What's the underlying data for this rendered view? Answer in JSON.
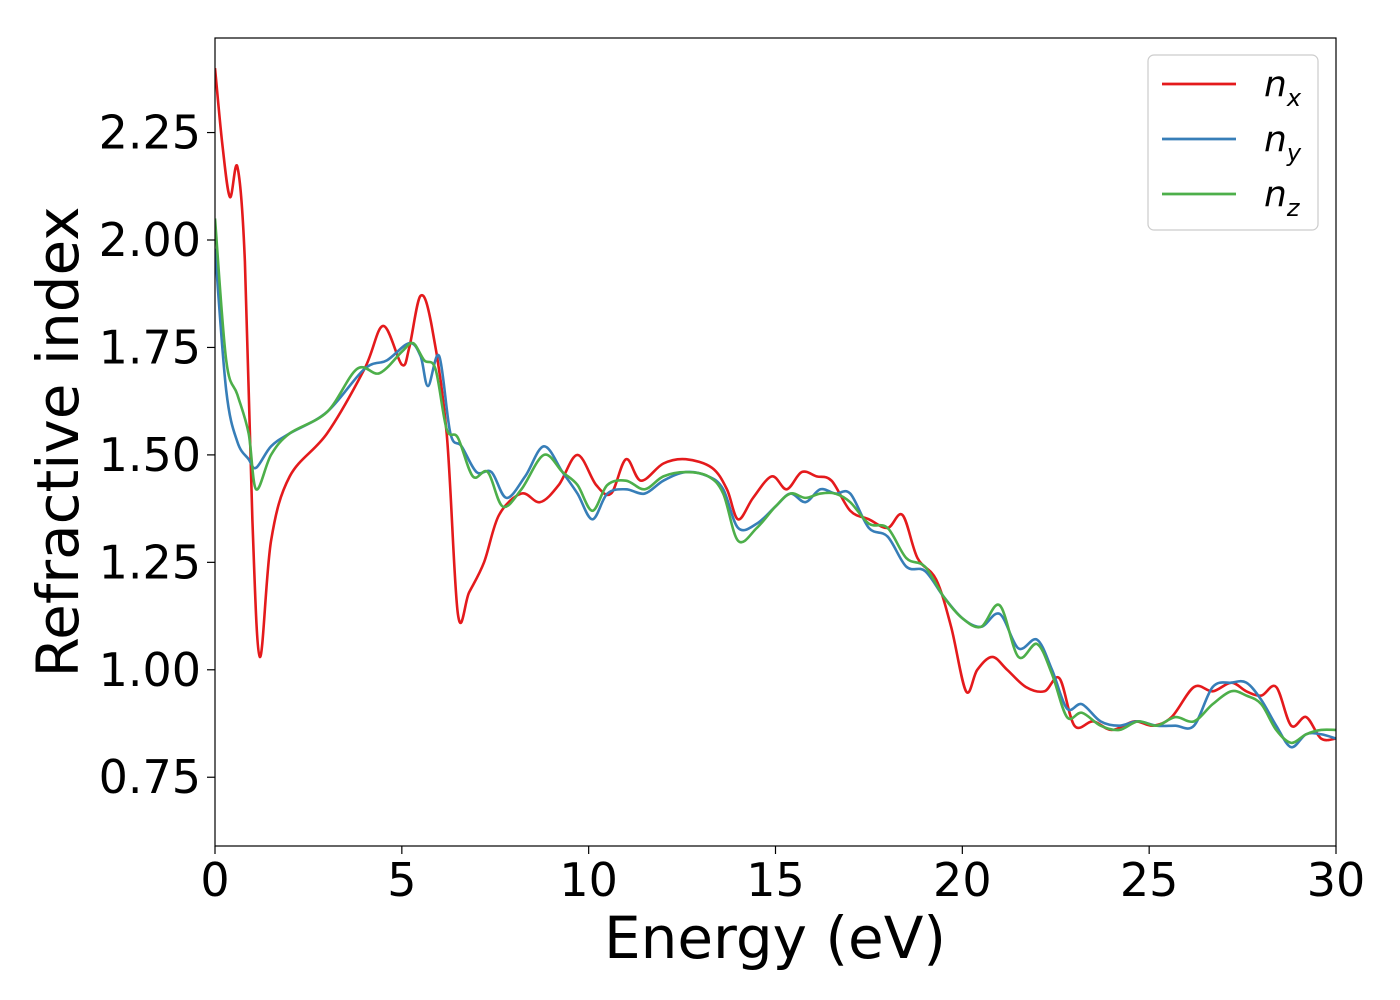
{
  "chart_data": {
    "type": "line",
    "xlabel": "Energy (eV)",
    "ylabel": "Refractive index",
    "xlim": [
      0,
      30
    ],
    "ylim": [
      0.59,
      2.47
    ],
    "x_ticks": [
      0,
      5,
      10,
      15,
      20,
      25,
      30
    ],
    "x_tick_labels": [
      "0",
      "5",
      "10",
      "15",
      "20",
      "25",
      "30"
    ],
    "y_ticks": [
      0.75,
      1.0,
      1.25,
      1.5,
      1.75,
      2.0,
      2.25
    ],
    "y_tick_labels": [
      "0.75",
      "1.00",
      "1.25",
      "1.50",
      "1.75",
      "2.00",
      "2.25"
    ],
    "grid": false,
    "legend_position": "top-right",
    "series": [
      {
        "name": "n",
        "subscript": "x",
        "color": "#e41a1c",
        "x": [
          0,
          0.2,
          0.4,
          0.6,
          0.8,
          1.0,
          1.2,
          1.5,
          2.0,
          3.0,
          4.0,
          4.5,
          5.0,
          5.2,
          5.5,
          5.8,
          6.2,
          6.5,
          6.8,
          7.2,
          7.6,
          8.2,
          8.7,
          9.2,
          9.7,
          10.2,
          10.6,
          11.0,
          11.4,
          12.0,
          12.6,
          13.3,
          13.7,
          14.0,
          14.4,
          14.9,
          15.3,
          15.7,
          16.1,
          16.5,
          17.0,
          17.5,
          18.0,
          18.4,
          18.8,
          19.3,
          19.7,
          20.1,
          20.4,
          20.8,
          21.2,
          21.7,
          22.2,
          22.6,
          23.0,
          23.5,
          24.0,
          24.6,
          25.1,
          25.6,
          26.2,
          26.7,
          27.2,
          27.6,
          28.0,
          28.4,
          28.8,
          29.2,
          29.6,
          30.0
        ],
        "y": [
          2.4,
          2.22,
          2.1,
          2.17,
          1.95,
          1.35,
          1.03,
          1.3,
          1.45,
          1.55,
          1.7,
          1.8,
          1.71,
          1.75,
          1.87,
          1.8,
          1.55,
          1.13,
          1.18,
          1.25,
          1.36,
          1.41,
          1.39,
          1.43,
          1.5,
          1.43,
          1.41,
          1.49,
          1.44,
          1.48,
          1.49,
          1.47,
          1.42,
          1.35,
          1.4,
          1.45,
          1.42,
          1.46,
          1.45,
          1.44,
          1.37,
          1.35,
          1.33,
          1.36,
          1.26,
          1.21,
          1.1,
          0.95,
          1.0,
          1.03,
          1.0,
          0.96,
          0.95,
          0.98,
          0.87,
          0.88,
          0.86,
          0.88,
          0.87,
          0.89,
          0.96,
          0.95,
          0.97,
          0.95,
          0.94,
          0.96,
          0.87,
          0.89,
          0.84,
          0.84
        ]
      },
      {
        "name": "n",
        "subscript": "y",
        "color": "#377eb8",
        "x": [
          0,
          0.3,
          0.6,
          0.9,
          1.1,
          1.5,
          2.0,
          3.0,
          4.0,
          4.6,
          5.2,
          5.5,
          5.7,
          6.0,
          6.3,
          6.6,
          7.0,
          7.4,
          7.8,
          8.3,
          8.8,
          9.3,
          9.7,
          10.1,
          10.5,
          11.0,
          11.5,
          12.0,
          12.6,
          13.2,
          13.6,
          14.0,
          14.5,
          15.0,
          15.4,
          15.8,
          16.2,
          16.6,
          17.0,
          17.5,
          18.0,
          18.5,
          19.0,
          19.5,
          20.0,
          20.5,
          21.0,
          21.5,
          22.0,
          22.4,
          22.8,
          23.2,
          23.7,
          24.2,
          24.7,
          25.2,
          25.7,
          26.2,
          26.7,
          27.2,
          27.6,
          28.0,
          28.4,
          28.8,
          29.2,
          29.6,
          30.0
        ],
        "y": [
          1.98,
          1.65,
          1.53,
          1.49,
          1.47,
          1.52,
          1.55,
          1.6,
          1.7,
          1.72,
          1.76,
          1.73,
          1.66,
          1.73,
          1.55,
          1.52,
          1.46,
          1.46,
          1.4,
          1.45,
          1.52,
          1.46,
          1.41,
          1.35,
          1.41,
          1.42,
          1.41,
          1.44,
          1.46,
          1.45,
          1.42,
          1.33,
          1.34,
          1.38,
          1.41,
          1.39,
          1.42,
          1.41,
          1.41,
          1.33,
          1.31,
          1.24,
          1.23,
          1.17,
          1.12,
          1.1,
          1.13,
          1.05,
          1.07,
          1.0,
          0.91,
          0.92,
          0.88,
          0.87,
          0.88,
          0.87,
          0.87,
          0.87,
          0.96,
          0.97,
          0.97,
          0.93,
          0.87,
          0.82,
          0.85,
          0.85,
          0.84
        ]
      },
      {
        "name": "n",
        "subscript": "z",
        "color": "#4daf4a",
        "x": [
          0,
          0.3,
          0.6,
          0.9,
          1.1,
          1.5,
          2.0,
          3.0,
          3.8,
          4.4,
          5.0,
          5.3,
          5.6,
          5.9,
          6.2,
          6.5,
          6.9,
          7.3,
          7.7,
          8.2,
          8.8,
          9.3,
          9.7,
          10.1,
          10.5,
          11.0,
          11.5,
          12.0,
          12.6,
          13.2,
          13.6,
          14.0,
          14.5,
          15.0,
          15.4,
          15.8,
          16.2,
          16.6,
          17.0,
          17.5,
          18.0,
          18.5,
          19.0,
          19.5,
          20.0,
          20.5,
          21.0,
          21.5,
          22.0,
          22.4,
          22.8,
          23.2,
          23.7,
          24.2,
          24.7,
          25.2,
          25.7,
          26.2,
          26.7,
          27.2,
          27.6,
          28.0,
          28.4,
          28.8,
          29.2,
          29.6,
          30.0
        ],
        "y": [
          2.05,
          1.72,
          1.64,
          1.55,
          1.42,
          1.5,
          1.55,
          1.6,
          1.7,
          1.69,
          1.74,
          1.76,
          1.72,
          1.7,
          1.56,
          1.54,
          1.45,
          1.46,
          1.38,
          1.42,
          1.5,
          1.46,
          1.43,
          1.37,
          1.43,
          1.44,
          1.42,
          1.45,
          1.46,
          1.45,
          1.41,
          1.3,
          1.33,
          1.38,
          1.41,
          1.4,
          1.41,
          1.41,
          1.39,
          1.34,
          1.33,
          1.26,
          1.24,
          1.17,
          1.12,
          1.1,
          1.15,
          1.03,
          1.06,
          0.99,
          0.89,
          0.9,
          0.87,
          0.86,
          0.88,
          0.87,
          0.89,
          0.88,
          0.92,
          0.95,
          0.94,
          0.92,
          0.86,
          0.83,
          0.85,
          0.86,
          0.86
        ]
      }
    ]
  }
}
